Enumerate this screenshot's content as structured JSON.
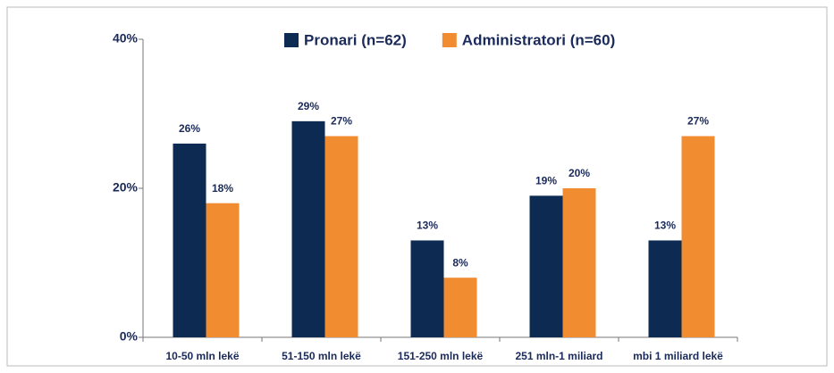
{
  "chart_data": {
    "type": "bar",
    "categories": [
      "10-50 mln lekë",
      "51-150 mln lekë",
      "151-250 mln lekë",
      "251 mln-1 miliard",
      "mbi 1 miliard lekë"
    ],
    "series": [
      {
        "name": "Pronari (n=62)",
        "color": "#0d2b52",
        "values": [
          26,
          29,
          13,
          19,
          13
        ],
        "value_labels": [
          "26%",
          "29%",
          "13%",
          "19%",
          "13%"
        ]
      },
      {
        "name": "Administratori (n=60)",
        "color": "#f28c30",
        "values": [
          18,
          27,
          8,
          20,
          27
        ],
        "value_labels": [
          "18%",
          "27%",
          "8%",
          "20%",
          "27%"
        ]
      }
    ],
    "ylim": [
      0,
      40
    ],
    "yticks": [
      {
        "value": 0,
        "label": "0%"
      },
      {
        "value": 20,
        "label": "20%"
      },
      {
        "value": 40,
        "label": "40%"
      }
    ],
    "legend": "top"
  }
}
